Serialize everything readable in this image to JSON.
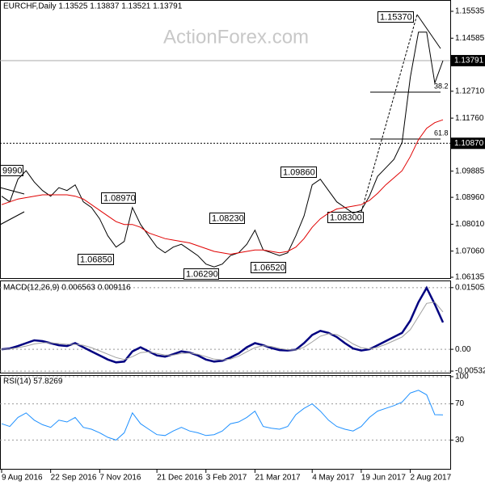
{
  "chart_data": [
    {
      "type": "line",
      "title": "EURCHF,Daily  1.13525 1.13837 1.13521 1.13791",
      "watermark": "ActionForex.com",
      "xlim": [
        0,
        54
      ],
      "xticks": [
        {
          "value": 0,
          "label": "9 Aug 2016"
        },
        {
          "value": 6,
          "label": "22 Sep 2016"
        },
        {
          "value": 12,
          "label": "7 Nov 2016"
        },
        {
          "value": 19,
          "label": "21 Dec 2016"
        },
        {
          "value": 25,
          "label": "3 Feb 2017"
        },
        {
          "value": 31,
          "label": "21 Mar 2017"
        },
        {
          "value": 38,
          "label": "4 May 2017"
        },
        {
          "value": 44,
          "label": "19 Jun 2017"
        },
        {
          "value": 50,
          "label": "2 Aug 2017"
        }
      ],
      "ylim": [
        1.06135,
        1.15535
      ],
      "yticks": [
        1.15535,
        1.14585,
        {
          "value": 1.1271,
          "label": "1.12710"
        },
        {
          "value": 1.1176,
          "label": "1.11760"
        },
        1.09885,
        {
          "value": 1.0896,
          "label": "1.08960"
        },
        {
          "value": 1.0801,
          "label": "1.08010"
        },
        {
          "value": 1.0706,
          "label": "1.07060"
        },
        1.06135
      ],
      "current_price": 1.13791,
      "level": {
        "value": 1.1087,
        "label": "1.10870"
      },
      "fib_levels": [
        38.2,
        61.8
      ],
      "annotations": [
        "9990",
        "1.08970",
        "1.06850",
        "1.06290",
        "1.08230",
        "1.06520",
        "1.09860",
        "1.08300",
        "1.15370"
      ],
      "series": [
        {
          "color": "#000000",
          "values": [
            1.09,
            1.088,
            1.096,
            1.099,
            1.095,
            1.092,
            1.09,
            1.093,
            1.092,
            1.094,
            1.088,
            1.086,
            1.082,
            1.076,
            1.072,
            1.074,
            1.086,
            1.08,
            1.076,
            1.072,
            1.07,
            1.072,
            1.073,
            1.071,
            1.069,
            1.066,
            1.065,
            1.066,
            1.069,
            1.07,
            1.073,
            1.078,
            1.071,
            1.07,
            1.069,
            1.07,
            1.076,
            1.083,
            1.094,
            1.096,
            1.092,
            1.088,
            1.086,
            1.084,
            1.085,
            1.09,
            1.097,
            1.1,
            1.103,
            1.109,
            1.132,
            1.148,
            1.148,
            1.13,
            1.13791
          ]
        },
        {
          "color": "#e00000",
          "values": [
            1.087,
            1.088,
            1.089,
            1.0895,
            1.09,
            1.0905,
            1.0905,
            1.0905,
            1.0905,
            1.09,
            1.089,
            1.087,
            1.085,
            1.083,
            1.081,
            1.08,
            1.08,
            1.079,
            1.077,
            1.076,
            1.075,
            1.0745,
            1.074,
            1.0735,
            1.0725,
            1.0715,
            1.0705,
            1.07,
            1.0695,
            1.07,
            1.0705,
            1.071,
            1.071,
            1.0705,
            1.07,
            1.0705,
            1.072,
            1.075,
            1.079,
            1.082,
            1.084,
            1.0855,
            1.086,
            1.0865,
            1.087,
            1.0885,
            1.091,
            1.094,
            1.0965,
            1.099,
            1.104,
            1.11,
            1.114,
            1.116,
            1.117
          ]
        }
      ]
    },
    {
      "type": "line",
      "title": "MACD(12,26,9) 0.006563 0.009116",
      "xlim": [
        0,
        54
      ],
      "ylim": [
        -0.0055,
        0.0162
      ],
      "yticks": [
        0.015052,
        {
          "value": 0,
          "label": "0.00"
        },
        -0.005321
      ],
      "series": [
        {
          "color": "#000080",
          "values": [
            0.0,
            0.0002,
            0.0008,
            0.0015,
            0.0022,
            0.002,
            0.0015,
            0.001,
            0.0008,
            0.0015,
            0.0005,
            -0.0005,
            -0.0015,
            -0.0025,
            -0.0032,
            -0.003,
            -0.0005,
            0.0005,
            -0.0005,
            -0.0015,
            -0.0018,
            -0.0012,
            -0.0005,
            -0.0008,
            -0.0015,
            -0.0025,
            -0.003,
            -0.0028,
            -0.002,
            -0.001,
            0.0005,
            0.0015,
            0.001,
            0.0003,
            -0.0002,
            -0.0003,
            -0.0001,
            0.0015,
            0.0035,
            0.0045,
            0.004,
            0.003,
            0.0015,
            0.0002,
            -0.0003,
            0.0,
            0.001,
            0.002,
            0.003,
            0.004,
            0.007,
            0.0115,
            0.015,
            0.011,
            0.006563
          ]
        },
        {
          "color": "#a0a0a0",
          "values": [
            0.0,
            0.0001,
            0.0004,
            0.0008,
            0.0013,
            0.0016,
            0.0016,
            0.0014,
            0.0012,
            0.0012,
            0.001,
            0.0004,
            -0.0004,
            -0.0012,
            -0.002,
            -0.0025,
            -0.0018,
            -0.0008,
            -0.0006,
            -0.001,
            -0.0014,
            -0.0014,
            -0.001,
            -0.0009,
            -0.0012,
            -0.0018,
            -0.0024,
            -0.0026,
            -0.0024,
            -0.0017,
            -0.0006,
            0.0004,
            0.0009,
            0.0007,
            0.0002,
            -0.0001,
            -0.0002,
            0.0005,
            0.0018,
            0.0032,
            0.0038,
            0.0036,
            0.0026,
            0.0013,
            0.0004,
            0.0001,
            0.0005,
            0.0012,
            0.0021,
            0.003,
            0.0048,
            0.008,
            0.0112,
            0.0115,
            0.009116
          ]
        }
      ]
    },
    {
      "type": "line",
      "title": "RSI(14) 57.8269",
      "xlim": [
        0,
        54
      ],
      "ylim": [
        0,
        100
      ],
      "yticks": [
        100,
        70,
        30
      ],
      "series": [
        {
          "color": "#1e90ff",
          "values": [
            48,
            45,
            55,
            60,
            52,
            47,
            44,
            52,
            50,
            55,
            44,
            42,
            38,
            33,
            30,
            38,
            60,
            48,
            42,
            36,
            35,
            40,
            44,
            40,
            38,
            35,
            36,
            40,
            48,
            50,
            55,
            62,
            45,
            43,
            42,
            45,
            58,
            65,
            70,
            62,
            52,
            45,
            42,
            40,
            45,
            55,
            62,
            65,
            68,
            72,
            82,
            85,
            80,
            58,
            57.8269
          ]
        }
      ]
    }
  ]
}
